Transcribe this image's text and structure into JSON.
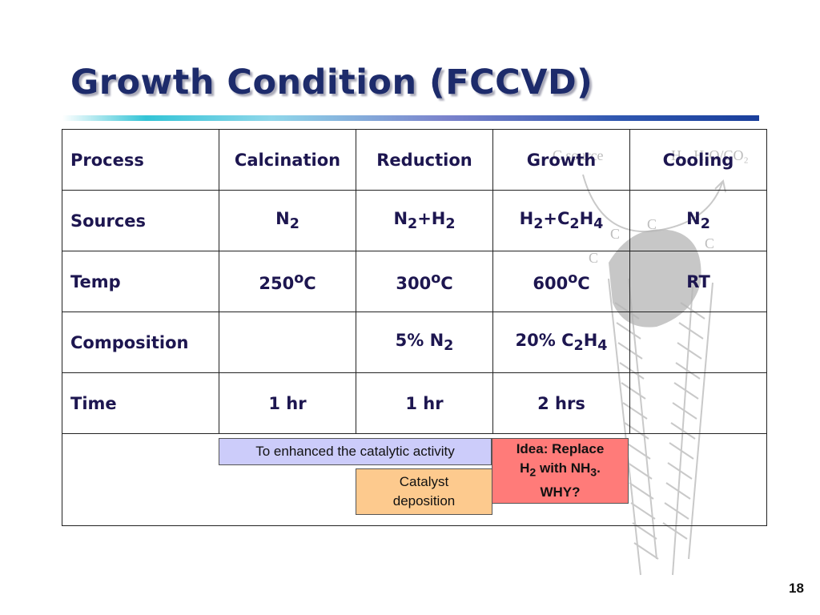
{
  "slide": {
    "title": "Growth Condition (FCCVD)",
    "page_number": "18"
  },
  "table": {
    "header": {
      "process": "Process",
      "calcination": "Calcination",
      "reduction": "Reduction",
      "growth": "Growth",
      "cooling": "Cooling"
    },
    "sources": {
      "label": "Sources",
      "calcination": {
        "a": "N",
        "a_sub": "2"
      },
      "reduction": {
        "a": "N",
        "a_sub": "2",
        "b": "+H",
        "b_sub": "2"
      },
      "growth": {
        "a": "H",
        "a_sub": "2",
        "b": "+C",
        "b_sub": "2",
        "c": "H",
        "c_sub": "4"
      },
      "cooling": {
        "a": "N",
        "a_sub": "2"
      }
    },
    "temp": {
      "label": "Temp",
      "calcination": {
        "value": "250",
        "sup": "o",
        "unit": "C"
      },
      "reduction": {
        "value": "300",
        "sup": "o",
        "unit": "C"
      },
      "growth": {
        "value": "600",
        "sup": "o",
        "unit": "C"
      },
      "cooling": "RT"
    },
    "composition": {
      "label": "Composition",
      "reduction": {
        "a": "5% N",
        "a_sub": "2"
      },
      "growth": {
        "a": "20% C",
        "a_sub": "2",
        "b": "H",
        "b_sub": "4"
      }
    },
    "time": {
      "label": "Time",
      "calcination": "1 hr",
      "reduction": "1 hr",
      "growth": "2 hrs"
    }
  },
  "notes": {
    "catalytic": "To enhanced the catalytic activity",
    "deposition_line1": "Catalyst",
    "deposition_line2": "deposition",
    "idea_line1": "Idea: Replace",
    "idea_h": "H",
    "idea_h_sub": "2",
    "idea_with": " with NH",
    "idea_nh_sub": "3",
    "idea_dot": ".",
    "idea_line3": "WHY?"
  },
  "watermark": {
    "source": "C source",
    "gas": "H₂, H₂O/CO₂",
    "carbon": "C"
  }
}
